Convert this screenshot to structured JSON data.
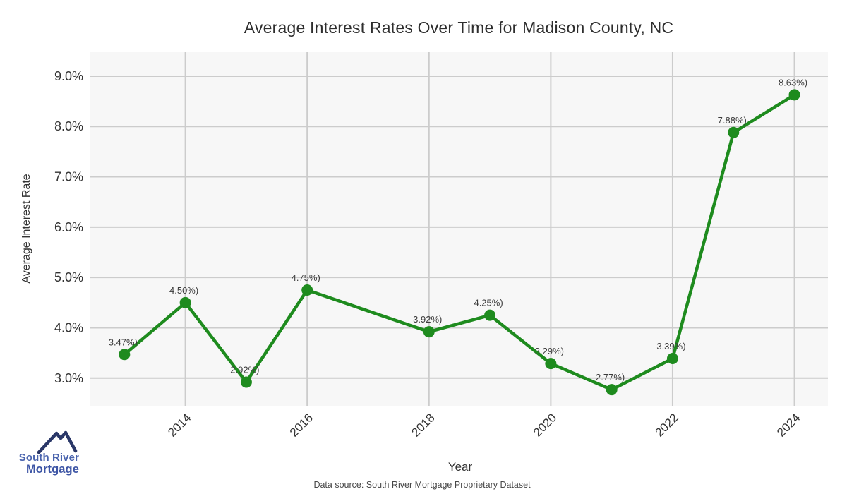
{
  "page": {
    "background": "#ffffff"
  },
  "chart": {
    "title": "Average Interest Rates Over Time for Madison County, NC",
    "xlabel": "Year",
    "ylabel": "Average Interest Rate",
    "source_note": "Data source: South River Mortgage Proprietary Dataset"
  },
  "chart_data": {
    "type": "line",
    "title": "Average Interest Rates Over Time for Madison County, NC",
    "xlabel": "Year",
    "ylabel": "Average Interest Rate",
    "x": [
      2013,
      2014,
      2015,
      2016,
      2018,
      2019,
      2020,
      2021,
      2022,
      2023,
      2024
    ],
    "values": [
      3.47,
      4.5,
      2.92,
      4.75,
      3.92,
      4.25,
      3.29,
      2.77,
      3.39,
      7.88,
      8.63
    ],
    "point_labels": [
      "3.47%)",
      "4.50%)",
      "2.92%)",
      "4.75%)",
      "3.92%)",
      "4.25%)",
      "3.29%)",
      "2.77%)",
      "3.39%)",
      "7.88%)",
      "8.63%)"
    ],
    "x_ticks": [
      2014,
      2016,
      2018,
      2020,
      2022,
      2024
    ],
    "x_tick_labels": [
      "2014",
      "2016",
      "2018",
      "2020",
      "2022",
      "2024"
    ],
    "y_ticks": [
      3,
      4,
      5,
      6,
      7,
      8,
      9
    ],
    "y_tick_labels": [
      "3.0%",
      "4.0%",
      "5.0%",
      "6.0%",
      "7.0%",
      "8.0%",
      "9.0%"
    ],
    "xlim": [
      2012.44,
      2024.55
    ],
    "ylim": [
      2.45,
      9.49
    ],
    "grid": true,
    "legend": "none",
    "colors": {
      "line": "#1e8b1e",
      "marker": "#1e8b1e",
      "plot_bg": "#f7f7f7",
      "grid": "#cccccc",
      "tick_text": "#333333",
      "point_label_text": "#3b3b3b"
    }
  },
  "logo": {
    "line1": "South River",
    "line2": "Mortgage",
    "colors": {
      "roof": "#2a3768",
      "line1": "#4a64ae",
      "line2": "#3d55a5"
    }
  }
}
